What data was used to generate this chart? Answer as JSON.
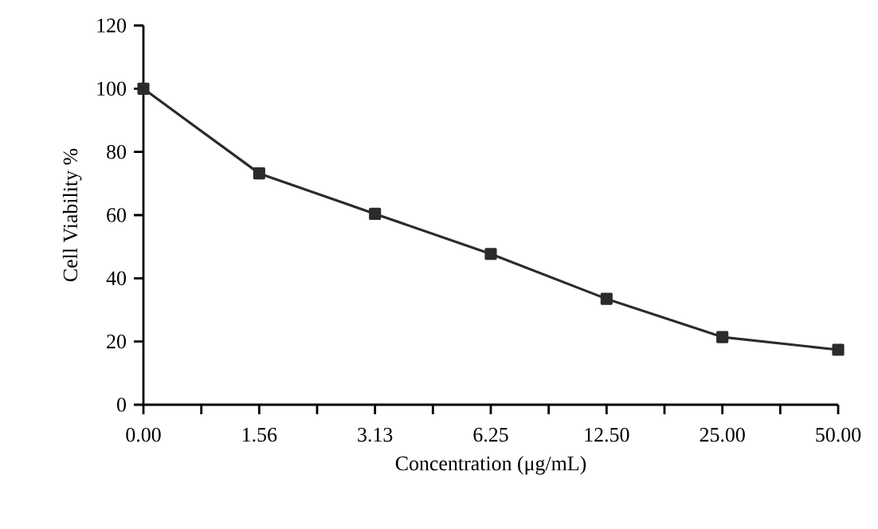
{
  "chart_data": {
    "type": "line",
    "xlabel": "Concentration (μg/mL)",
    "ylabel": "Cell Viability %",
    "categories": [
      "0.00",
      "1.56",
      "3.13",
      "6.25",
      "12.50",
      "25.00",
      "50.00"
    ],
    "series": [
      {
        "color": "#2b2b2b",
        "values": [
          100,
          73.2,
          60.4,
          47.7,
          33.5,
          21.4,
          17.4
        ]
      }
    ],
    "ylim": [
      0,
      120
    ],
    "yticks": [
      0,
      20,
      40,
      60,
      80,
      100,
      120
    ],
    "marker": "square",
    "line_style": "solid",
    "grid": false
  }
}
